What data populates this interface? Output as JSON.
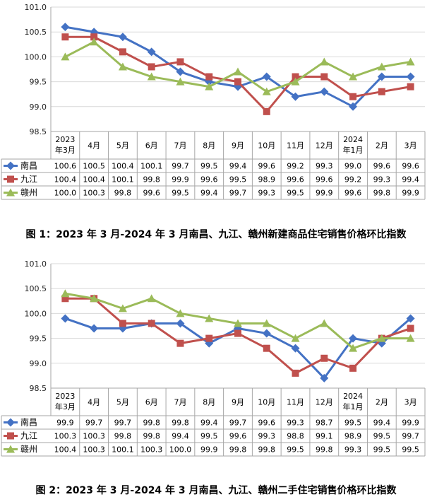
{
  "colors": {
    "nanchang": "#4472C4",
    "jiujiang": "#C0504D",
    "ganzhou": "#9BBB59",
    "grid": "#d9d9d9",
    "border": "#a6a6a6"
  },
  "chart_data": [
    {
      "type": "line",
      "title": "图 1：2023 年 3 月-2024 年 3 月南昌、九江、赣州新建商品住宅销售价格环比指数",
      "categories": [
        "2023年3月",
        "4月",
        "5月",
        "6月",
        "7月",
        "8月",
        "9月",
        "10月",
        "11月",
        "12月",
        "2024年1月",
        "2月",
        "3月"
      ],
      "category_lines": [
        [
          "2023",
          "年3月"
        ],
        [
          "4月"
        ],
        [
          "5月"
        ],
        [
          "6月"
        ],
        [
          "7月"
        ],
        [
          "8月"
        ],
        [
          "9月"
        ],
        [
          "10月"
        ],
        [
          "11月"
        ],
        [
          "12月"
        ],
        [
          "2024",
          "年1月"
        ],
        [
          "2月"
        ],
        [
          "3月"
        ]
      ],
      "yticks": [
        "101.0",
        "100.5",
        "100.0",
        "99.5",
        "99.0",
        "98.5"
      ],
      "ylim": [
        98.5,
        101.0
      ],
      "grid": true,
      "legend": "data-table",
      "series": [
        {
          "name": "南昌",
          "values": [
            100.6,
            100.5,
            100.4,
            100.1,
            99.7,
            99.5,
            99.4,
            99.6,
            99.2,
            99.3,
            99.0,
            99.6,
            99.6
          ],
          "labels": [
            "100.6",
            "100.5",
            "100.4",
            "100.1",
            "99.7",
            "99.5",
            "99.4",
            "99.6",
            "99.2",
            "99.3",
            "99.0",
            "99.6",
            "99.6"
          ]
        },
        {
          "name": "九江",
          "values": [
            100.4,
            100.4,
            100.1,
            99.8,
            99.9,
            99.6,
            99.5,
            98.9,
            99.6,
            99.6,
            99.2,
            99.3,
            99.4
          ],
          "labels": [
            "100.4",
            "100.4",
            "100.1",
            "99.8",
            "99.9",
            "99.6",
            "99.5",
            "98.9",
            "99.6",
            "99.6",
            "99.2",
            "99.3",
            "99.4"
          ]
        },
        {
          "name": "赣州",
          "values": [
            100.0,
            100.3,
            99.8,
            99.6,
            99.5,
            99.4,
            99.7,
            99.3,
            99.5,
            99.9,
            99.6,
            99.8,
            99.9
          ],
          "labels": [
            "100.0",
            "100.3",
            "99.8",
            "99.6",
            "99.5",
            "99.4",
            "99.7",
            "99.3",
            "99.5",
            "99.9",
            "99.6",
            "99.8",
            "99.9"
          ]
        }
      ]
    },
    {
      "type": "line",
      "title": "图 2：2023 年 3 月-2024 年 3 月南昌、九江、赣州二手住宅销售价格环比指数",
      "categories": [
        "2023年3月",
        "4月",
        "5月",
        "6月",
        "7月",
        "8月",
        "9月",
        "10月",
        "11月",
        "12月",
        "2024年1月",
        "2月",
        "3月"
      ],
      "category_lines": [
        [
          "2023",
          "年3月"
        ],
        [
          "4月"
        ],
        [
          "5月"
        ],
        [
          "6月"
        ],
        [
          "7月"
        ],
        [
          "8月"
        ],
        [
          "9月"
        ],
        [
          "10月"
        ],
        [
          "11月"
        ],
        [
          "12月"
        ],
        [
          "2024",
          "年1月"
        ],
        [
          "2月"
        ],
        [
          "3月"
        ]
      ],
      "yticks": [
        "101.0",
        "100.5",
        "100.0",
        "99.5",
        "99.0",
        "98.5"
      ],
      "ylim": [
        98.5,
        101.0
      ],
      "grid": true,
      "legend": "data-table",
      "series": [
        {
          "name": "南昌",
          "values": [
            99.9,
            99.7,
            99.7,
            99.8,
            99.8,
            99.4,
            99.7,
            99.6,
            99.3,
            98.7,
            99.5,
            99.4,
            99.9
          ],
          "labels": [
            "99.9",
            "99.7",
            "99.7",
            "99.8",
            "99.8",
            "99.4",
            "99.7",
            "99.6",
            "99.3",
            "98.7",
            "99.5",
            "99.4",
            "99.9"
          ]
        },
        {
          "name": "九江",
          "values": [
            100.3,
            100.3,
            99.8,
            99.8,
            99.4,
            99.5,
            99.6,
            99.3,
            98.8,
            99.1,
            98.9,
            99.5,
            99.7
          ],
          "labels": [
            "100.3",
            "100.3",
            "99.8",
            "99.8",
            "99.4",
            "99.5",
            "99.6",
            "99.3",
            "98.8",
            "99.1",
            "98.9",
            "99.5",
            "99.7"
          ]
        },
        {
          "name": "赣州",
          "values": [
            100.4,
            100.3,
            100.1,
            100.3,
            100.0,
            99.9,
            99.8,
            99.8,
            99.5,
            99.8,
            99.3,
            99.5,
            99.5
          ],
          "labels": [
            "100.4",
            "100.3",
            "100.1",
            "100.3",
            "100.0",
            "99.9",
            "99.8",
            "99.8",
            "99.5",
            "99.8",
            "99.3",
            "99.5",
            "99.5"
          ]
        }
      ]
    }
  ]
}
